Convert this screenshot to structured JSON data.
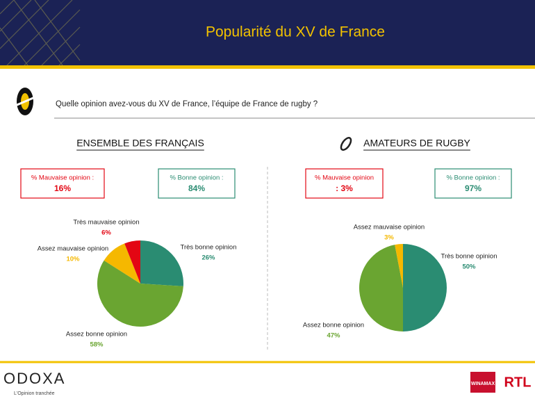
{
  "header": {
    "title": "Popularité du XV de France"
  },
  "question": "Quelle opinion avez-vous du XV de France, l’équipe de France de rugby ?",
  "chart_data": [
    {
      "type": "pie",
      "title": "ENSEMBLE DES FRANÇAIS",
      "boxes": [
        {
          "label": "% Mauvaise opinion :",
          "value": "16%",
          "color": "#e30613"
        },
        {
          "label": "% Bonne opinion :",
          "value": "84%",
          "color": "#2a8c72"
        }
      ],
      "categories": [
        "Très bonne opinion",
        "Assez bonne opinion",
        "Assez mauvaise opinion",
        "Très mauvaise opinion"
      ],
      "values": [
        26,
        58,
        10,
        6
      ],
      "value_labels": [
        "26%",
        "58%",
        "10%",
        "6%"
      ],
      "colors": [
        "#2a8c72",
        "#6aa531",
        "#f5b800",
        "#e30613"
      ]
    },
    {
      "type": "pie",
      "title": "AMATEURS DE RUGBY",
      "boxes": [
        {
          "label": "% Mauvaise opinion",
          "value": ": 3%",
          "color": "#e30613"
        },
        {
          "label": "% Bonne opinion :",
          "value": "97%",
          "color": "#2a8c72"
        }
      ],
      "categories": [
        "Très bonne opinion",
        "Assez bonne opinion",
        "Assez mauvaise opinion"
      ],
      "values": [
        50,
        47,
        3
      ],
      "value_labels": [
        "50%",
        "47%",
        "3%"
      ],
      "colors": [
        "#2a8c72",
        "#6aa531",
        "#f5b800"
      ]
    }
  ],
  "footer": {
    "logo": "ODOXA",
    "tagline": "L'Opinion tranchée",
    "partners": [
      "WINAMAX",
      "RTL"
    ]
  }
}
